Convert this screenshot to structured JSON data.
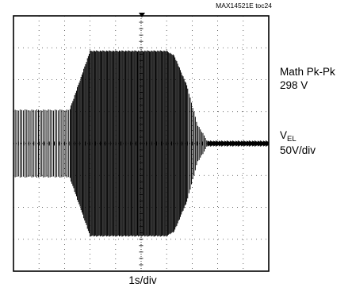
{
  "figure_id": "MAX14521E toc24",
  "chart_data": {
    "type": "line",
    "title": "",
    "grid": {
      "major_divisions_x": 10,
      "major_divisions_y": 8,
      "style": "dotted",
      "center_crosshair_ticks": true
    },
    "series": [
      {
        "name": "V_EL",
        "description_values": {
          "envelope_x_divisions": [
            0,
            2.2,
            2.7,
            3.0,
            6.0,
            6.3,
            6.8,
            7.2,
            7.6,
            10
          ],
          "envelope_pk_pk_divisions": [
            2.1,
            2.1,
            4.4,
            5.8,
            5.8,
            5.5,
            3.6,
            1.2,
            0.15,
            0.15
          ]
        }
      }
    ],
    "trigger_marker": "top-center",
    "colors": {
      "trace": "#000000",
      "grid": "#000000",
      "background": "#ffffff"
    }
  },
  "annotations": {
    "math_label": "Math Pk-Pk",
    "math_value": "298 V",
    "channel_label_main": "V",
    "channel_label_sub": "EL",
    "channel_scale": "50V/div",
    "time_scale": "1s/div"
  }
}
